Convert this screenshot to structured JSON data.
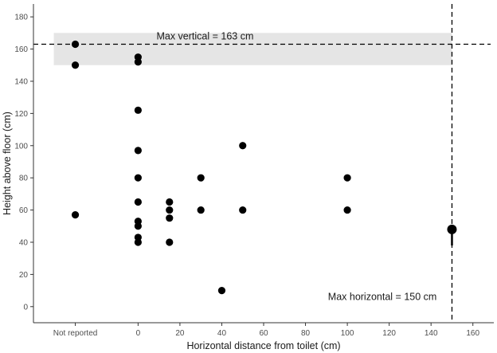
{
  "chart_data": {
    "type": "scatter",
    "title": "",
    "xlabel": "Horizontal distance from toilet (cm)",
    "ylabel": "Height above floor (cm)",
    "xlim": [
      -50,
      170
    ],
    "ylim": [
      -10,
      188
    ],
    "x_ticks": [
      {
        "value": -30,
        "label": "Not reported"
      },
      {
        "value": 0,
        "label": "0"
      },
      {
        "value": 20,
        "label": "20"
      },
      {
        "value": 40,
        "label": "40"
      },
      {
        "value": 60,
        "label": "60"
      },
      {
        "value": 80,
        "label": "80"
      },
      {
        "value": 100,
        "label": "100"
      },
      {
        "value": 120,
        "label": "120"
      },
      {
        "value": 140,
        "label": "140"
      },
      {
        "value": 160,
        "label": "160"
      }
    ],
    "y_ticks": [
      0,
      20,
      40,
      60,
      80,
      100,
      120,
      140,
      160,
      180
    ],
    "grid": false,
    "legend": "none",
    "points": [
      {
        "x": "Not reported",
        "y": 163
      },
      {
        "x": "Not reported",
        "y": 150
      },
      {
        "x": "Not reported",
        "y": 57
      },
      {
        "x": 0,
        "y": 155
      },
      {
        "x": 0,
        "y": 152
      },
      {
        "x": 0,
        "y": 122
      },
      {
        "x": 0,
        "y": 97
      },
      {
        "x": 0,
        "y": 80
      },
      {
        "x": 0,
        "y": 65
      },
      {
        "x": 0,
        "y": 53
      },
      {
        "x": 0,
        "y": 50
      },
      {
        "x": 0,
        "y": 43
      },
      {
        "x": 0,
        "y": 40
      },
      {
        "x": 15,
        "y": 65
      },
      {
        "x": 15,
        "y": 60
      },
      {
        "x": 15,
        "y": 55
      },
      {
        "x": 15,
        "y": 40
      },
      {
        "x": 30,
        "y": 80
      },
      {
        "x": 30,
        "y": 60
      },
      {
        "x": 40,
        "y": 10
      },
      {
        "x": 50,
        "y": 100
      },
      {
        "x": 50,
        "y": 60
      },
      {
        "x": 100,
        "y": 80
      },
      {
        "x": 100,
        "y": 60
      }
    ],
    "summary_point": {
      "x": 150,
      "y": 48,
      "error_low": 38,
      "error_high": 48
    },
    "reference_lines": [
      {
        "orientation": "horizontal",
        "value": 163,
        "style": "dashed"
      },
      {
        "orientation": "vertical",
        "value": 150,
        "style": "dashed"
      }
    ],
    "shaded_band": {
      "x_from": "Not reported",
      "x_to": 150,
      "y_from": 150,
      "y_to": 170,
      "color": "#e5e5e5"
    },
    "annotations": [
      {
        "text": "Max vertical = 163 cm",
        "x": 32,
        "y": 166
      },
      {
        "text": "Max horizontal = 150 cm",
        "x": 145,
        "y": 4
      }
    ],
    "colors": {
      "points": "#000000",
      "band": "#e5e5e5",
      "lines": "#000000"
    }
  }
}
